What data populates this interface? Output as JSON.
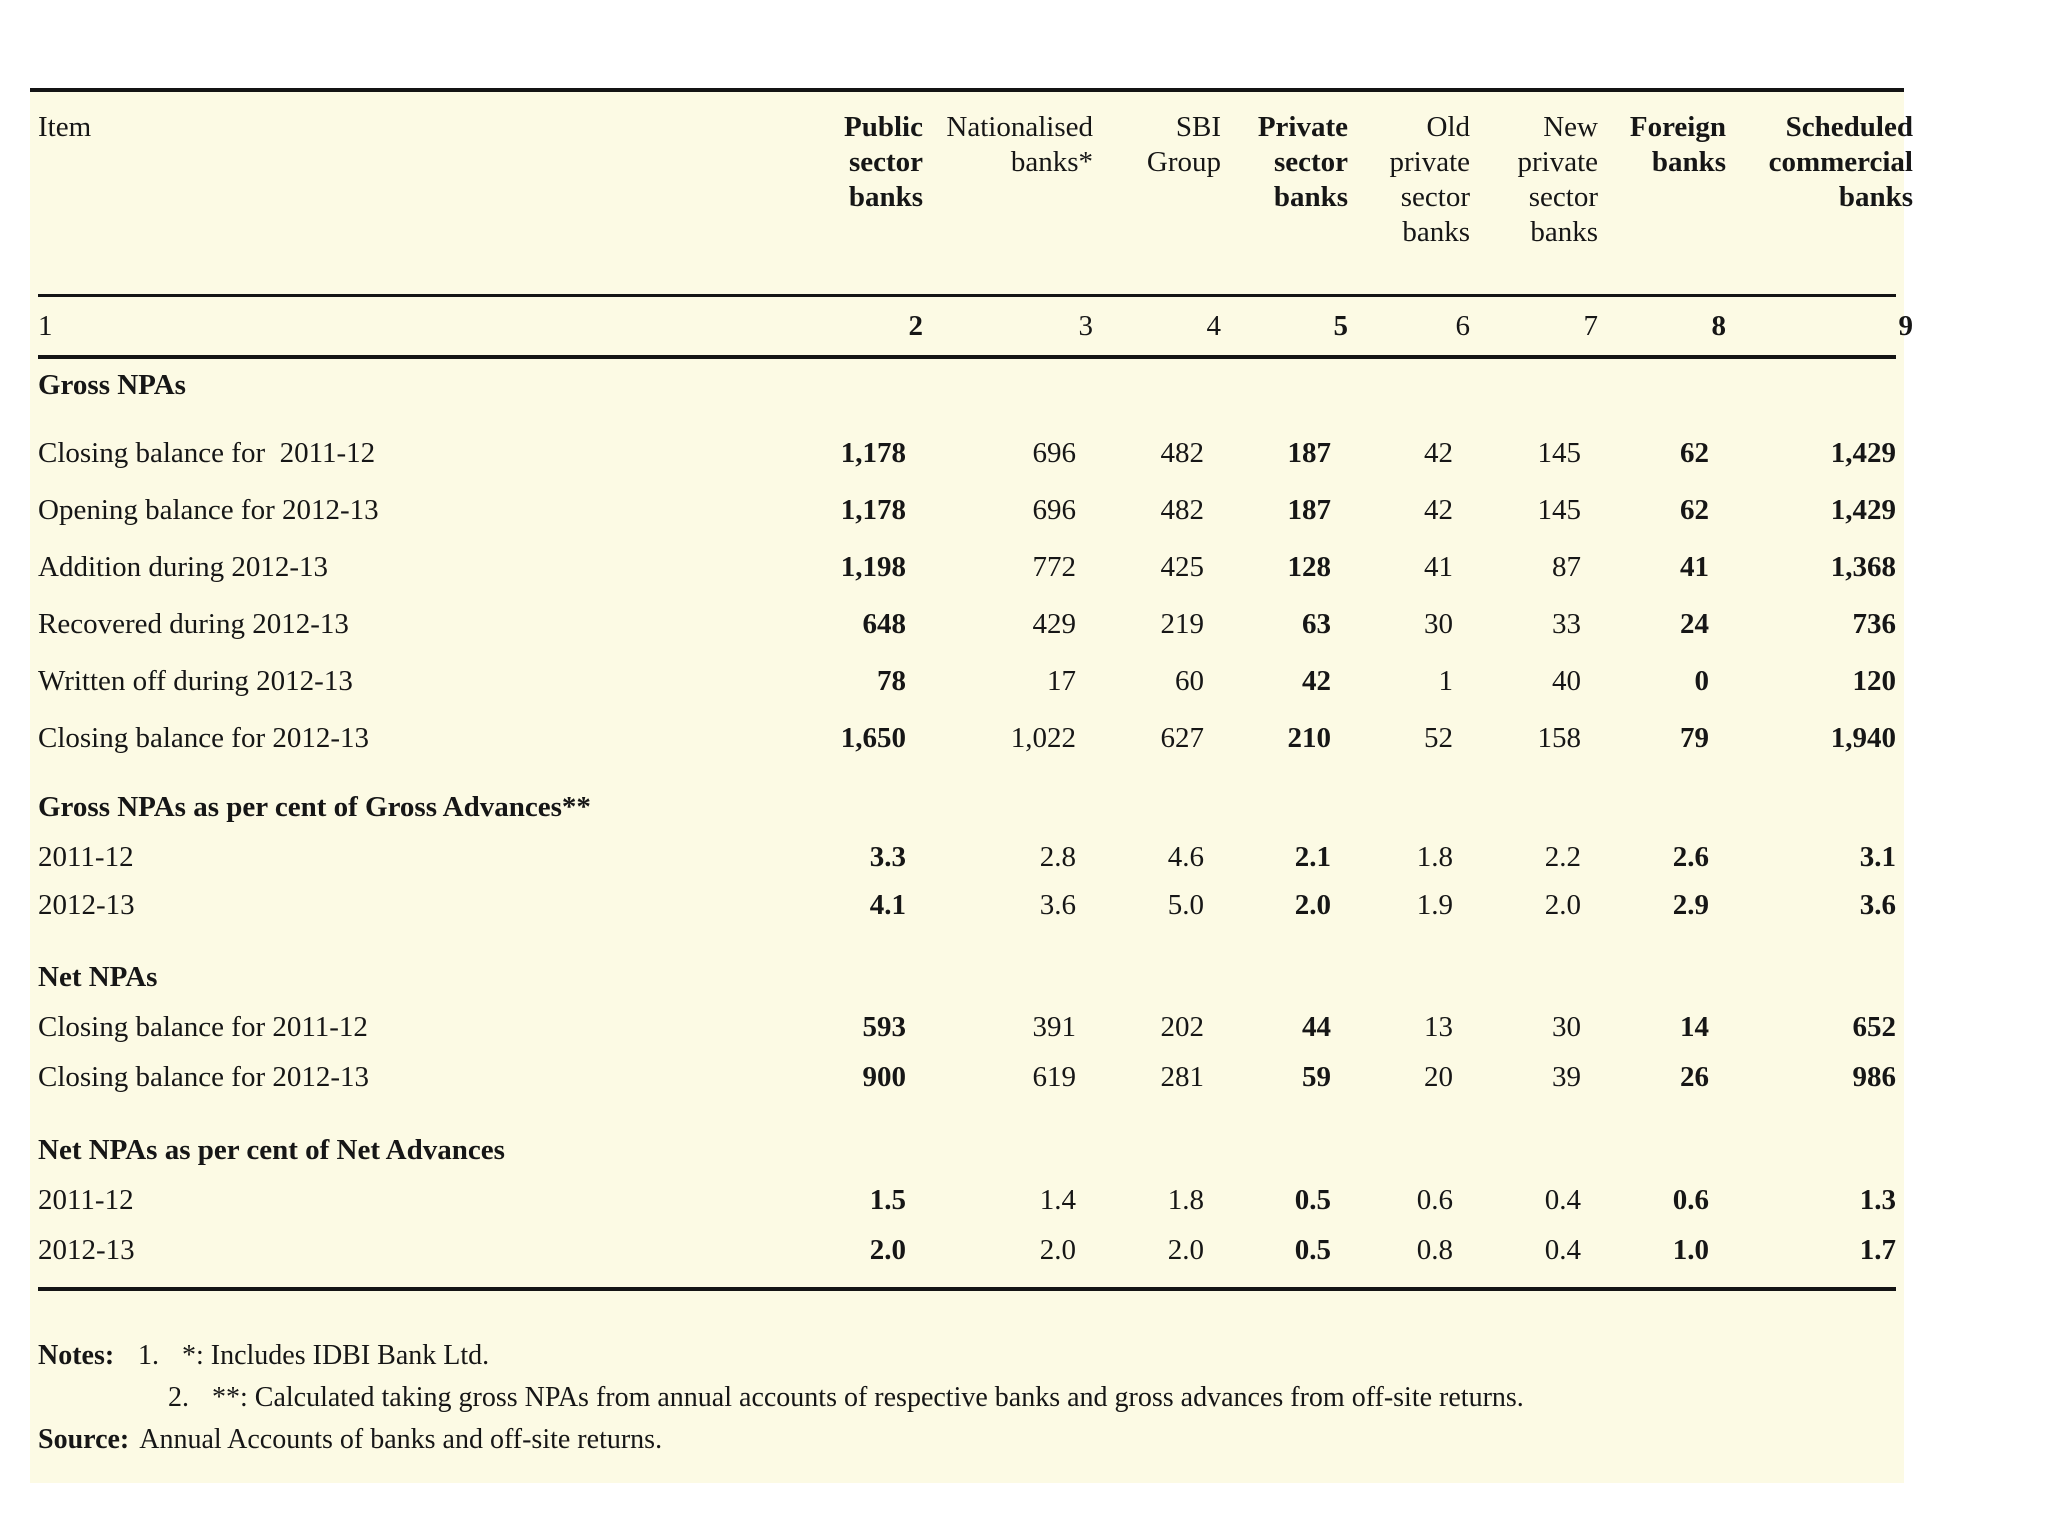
{
  "table": {
    "columns": [
      {
        "label": "Item",
        "bold": false
      },
      {
        "label": "Public\nsector\nbanks",
        "bold": true
      },
      {
        "label": "Nationalised\nbanks*",
        "bold": false
      },
      {
        "label": "SBI\nGroup",
        "bold": false
      },
      {
        "label": "Private\nsector\nbanks",
        "bold": true
      },
      {
        "label": "Old\nprivate\nsector\nbanks",
        "bold": false
      },
      {
        "label": "New\nprivate\nsector\nbanks",
        "bold": false
      },
      {
        "label": "Foreign\nbanks",
        "bold": true
      },
      {
        "label": "Scheduled\ncommercial\nbanks",
        "bold": true
      }
    ],
    "column_numbers": [
      "1",
      "2",
      "3",
      "4",
      "5",
      "6",
      "7",
      "8",
      "9"
    ],
    "bold_value_columns": [
      0,
      3,
      6,
      7
    ],
    "rows": [
      {
        "type": "section",
        "label": "Gross NPAs"
      },
      {
        "type": "data",
        "label": "Closing balance for  2011-12",
        "values": [
          "1,178",
          "696",
          "482",
          "187",
          "42",
          "145",
          "62",
          "1,429"
        ]
      },
      {
        "type": "data",
        "label": "Opening balance for 2012-13",
        "values": [
          "1,178",
          "696",
          "482",
          "187",
          "42",
          "145",
          "62",
          "1,429"
        ]
      },
      {
        "type": "data",
        "label": "Addition during 2012-13",
        "values": [
          "1,198",
          "772",
          "425",
          "128",
          "41",
          "87",
          "41",
          "1,368"
        ]
      },
      {
        "type": "data",
        "label": "Recovered during 2012-13",
        "values": [
          "648",
          "429",
          "219",
          "63",
          "30",
          "33",
          "24",
          "736"
        ]
      },
      {
        "type": "data",
        "label": "Written off during 2012-13",
        "values": [
          "78",
          "17",
          "60",
          "42",
          "1",
          "40",
          "0",
          "120"
        ]
      },
      {
        "type": "data",
        "label": "Closing balance for 2012-13",
        "values": [
          "1,650",
          "1,022",
          "627",
          "210",
          "52",
          "158",
          "79",
          "1,940"
        ]
      },
      {
        "type": "section",
        "label": "Gross NPAs as per cent of Gross Advances**"
      },
      {
        "type": "data",
        "label": "2011-12",
        "values": [
          "3.3",
          "2.8",
          "4.6",
          "2.1",
          "1.8",
          "2.2",
          "2.6",
          "3.1"
        ]
      },
      {
        "type": "data",
        "label": "2012-13",
        "values": [
          "4.1",
          "3.6",
          "5.0",
          "2.0",
          "1.9",
          "2.0",
          "2.9",
          "3.6"
        ]
      },
      {
        "type": "section",
        "label": "Net NPAs"
      },
      {
        "type": "data",
        "label": "Closing balance for 2011-12",
        "values": [
          "593",
          "391",
          "202",
          "44",
          "13",
          "30",
          "14",
          "652"
        ]
      },
      {
        "type": "data",
        "label": "Closing balance for 2012-13",
        "values": [
          "900",
          "619",
          "281",
          "59",
          "20",
          "39",
          "26",
          "986"
        ]
      },
      {
        "type": "section",
        "label": "Net NPAs as per cent of Net Advances"
      },
      {
        "type": "data",
        "label": "2011-12",
        "values": [
          "1.5",
          "1.4",
          "1.8",
          "0.5",
          "0.6",
          "0.4",
          "0.6",
          "1.3"
        ]
      },
      {
        "type": "data",
        "label": "2012-13",
        "values": [
          "2.0",
          "2.0",
          "2.0",
          "0.5",
          "0.8",
          "0.4",
          "1.0",
          "1.7"
        ]
      }
    ]
  },
  "notes": {
    "notes_label": "Notes:",
    "items": [
      {
        "num": "1.",
        "text": "*: Includes IDBI Bank Ltd."
      },
      {
        "num": "2.",
        "text": "**: Calculated taking gross NPAs from annual accounts of respective banks and gross advances from off-site returns."
      }
    ],
    "source_label": "Source:",
    "source_text": "Annual Accounts of banks and off-site returns."
  },
  "colors": {
    "background": "#fcfae4",
    "rule": "#141414",
    "text": "#161616"
  }
}
